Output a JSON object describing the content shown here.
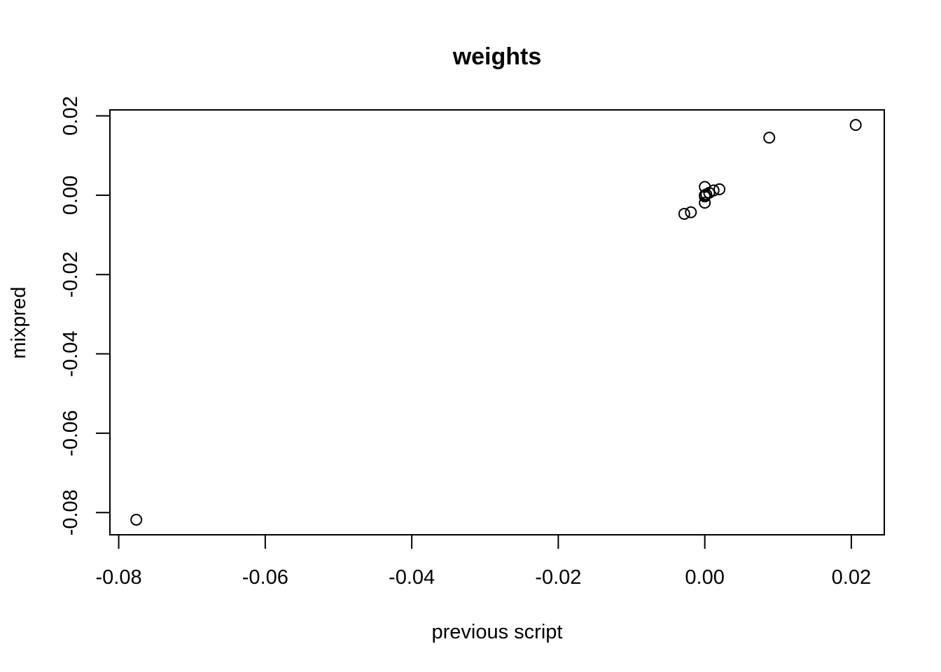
{
  "chart_data": {
    "type": "scatter",
    "title": "weights",
    "xlabel": "previous script",
    "ylabel": "mixpred",
    "xlim": [
      -0.0812,
      0.0245
    ],
    "ylim": [
      -0.0856,
      0.0215
    ],
    "x_ticks": [
      -0.08,
      -0.06,
      -0.04,
      -0.02,
      0.0,
      0.02
    ],
    "x_tick_labels": [
      "-0.08",
      "-0.06",
      "-0.04",
      "-0.02",
      "0.00",
      "0.02"
    ],
    "y_ticks": [
      -0.08,
      -0.06,
      -0.04,
      -0.02,
      0.0,
      0.02
    ],
    "y_tick_labels": [
      "-0.08",
      "-0.06",
      "-0.04",
      "-0.02",
      "0.00",
      "0.02"
    ],
    "grid": false,
    "marker": "open-circle",
    "points": [
      {
        "x": -0.0776,
        "y": -0.0818
      },
      {
        "x": 0.0206,
        "y": 0.0177
      },
      {
        "x": 0.0088,
        "y": 0.0145
      },
      {
        "x": 0.0,
        "y": 0.0021
      },
      {
        "x": 0.002,
        "y": 0.0015
      },
      {
        "x": 0.0012,
        "y": 0.0012
      },
      {
        "x": 0.0006,
        "y": 0.0006
      },
      {
        "x": 0.0002,
        "y": 0.0002
      },
      {
        "x": 0.0,
        "y": 0.0
      },
      {
        "x": 0.0,
        "y": -0.0003
      },
      {
        "x": 0.0,
        "y": -0.0019
      },
      {
        "x": -0.0019,
        "y": -0.0043
      },
      {
        "x": -0.0028,
        "y": -0.0047
      }
    ]
  }
}
